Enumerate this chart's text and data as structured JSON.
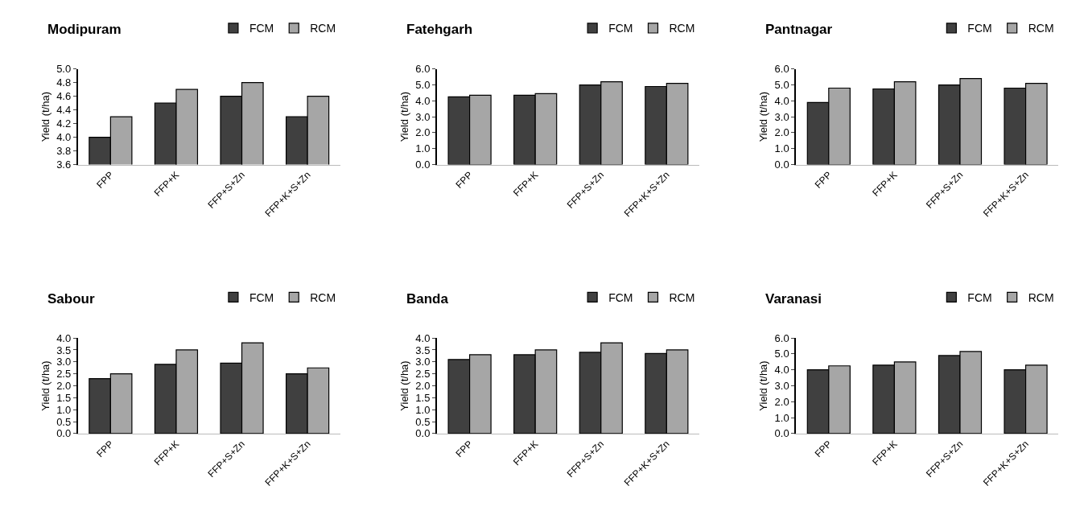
{
  "chart_data": [
    {
      "type": "bar",
      "title": "Modipuram",
      "ylabel": "Yield (t/ha)",
      "categories": [
        "FPP",
        "FFP+K",
        "FFP+S+Zn",
        "FFP+K+S+Zn"
      ],
      "legend": "top right",
      "series": [
        {
          "name": "FCM",
          "color": "#404040",
          "values": [
            4.0,
            4.5,
            4.6,
            4.3
          ]
        },
        {
          "name": "RCM",
          "color": "#a6a6a6",
          "values": [
            4.3,
            4.7,
            4.8,
            4.6
          ]
        }
      ],
      "ylim": [
        3.6,
        5.0
      ],
      "yticks": [
        {
          "value": 3.6,
          "label": "3.6"
        },
        {
          "value": 3.8,
          "label": "3.8"
        },
        {
          "value": 4.0,
          "label": "4.0"
        },
        {
          "value": 4.2,
          "label": "4.2"
        },
        {
          "value": 4.4,
          "label": "4.4"
        },
        {
          "value": 4.6,
          "label": "4.6"
        },
        {
          "value": 4.8,
          "label": "4.8"
        },
        {
          "value": 5.0,
          "label": "5.0"
        }
      ]
    },
    {
      "type": "bar",
      "title": "Fatehgarh",
      "ylabel": "Yield (t/ha)",
      "categories": [
        "FPP",
        "FFP+K",
        "FFP+S+Zn",
        "FFP+K+S+Zn"
      ],
      "legend": "top right",
      "series": [
        {
          "name": "FCM",
          "color": "#404040",
          "values": [
            4.25,
            4.35,
            5.0,
            4.9
          ]
        },
        {
          "name": "RCM",
          "color": "#a6a6a6",
          "values": [
            4.35,
            4.45,
            5.2,
            5.1
          ]
        }
      ],
      "ylim": [
        0,
        6
      ],
      "yticks": [
        {
          "value": 0,
          "label": "0.0"
        },
        {
          "value": 1,
          "label": "1.0"
        },
        {
          "value": 2,
          "label": "2.0"
        },
        {
          "value": 3,
          "label": "3.0"
        },
        {
          "value": 4,
          "label": "4.0"
        },
        {
          "value": 5,
          "label": "5.0"
        },
        {
          "value": 6,
          "label": "6.0"
        }
      ]
    },
    {
      "type": "bar",
      "title": "Pantnagar",
      "ylabel": "Yield (t/ha)",
      "categories": [
        "FPP",
        "FFP+K",
        "FFP+S+Zn",
        "FFP+K+S+Zn"
      ],
      "legend": "top right",
      "series": [
        {
          "name": "FCM",
          "color": "#404040",
          "values": [
            3.9,
            4.75,
            5.0,
            4.8
          ]
        },
        {
          "name": "RCM",
          "color": "#a6a6a6",
          "values": [
            4.8,
            5.2,
            5.4,
            5.1
          ]
        }
      ],
      "ylim": [
        0,
        6
      ],
      "yticks": [
        {
          "value": 0,
          "label": "0.0"
        },
        {
          "value": 1,
          "label": "1.0"
        },
        {
          "value": 2,
          "label": "2.0"
        },
        {
          "value": 3,
          "label": "3.0"
        },
        {
          "value": 4,
          "label": "4.0"
        },
        {
          "value": 5,
          "label": "5.0"
        },
        {
          "value": 6,
          "label": "6.0"
        }
      ]
    },
    {
      "type": "bar",
      "title": "Sabour",
      "ylabel": "Yield (t/ha)",
      "categories": [
        "FPP",
        "FFP+K",
        "FFP+S+Zn",
        "FFP+K+S+Zn"
      ],
      "legend": "top right",
      "series": [
        {
          "name": "FCM",
          "color": "#404040",
          "values": [
            2.3,
            2.9,
            2.95,
            2.5
          ]
        },
        {
          "name": "RCM",
          "color": "#a6a6a6",
          "values": [
            2.5,
            3.5,
            3.8,
            2.75
          ]
        }
      ],
      "ylim": [
        0,
        4
      ],
      "yticks": [
        {
          "value": 0,
          "label": "0.0"
        },
        {
          "value": 0.5,
          "label": "0.5"
        },
        {
          "value": 1,
          "label": "1.0"
        },
        {
          "value": 1.5,
          "label": "1.5"
        },
        {
          "value": 2,
          "label": "2.0"
        },
        {
          "value": 2.5,
          "label": "2.5"
        },
        {
          "value": 3,
          "label": "3.0"
        },
        {
          "value": 3.5,
          "label": "3.5"
        },
        {
          "value": 4,
          "label": "4.0"
        }
      ]
    },
    {
      "type": "bar",
      "title": "Banda",
      "ylabel": "Yield (t/ha)",
      "categories": [
        "FPP",
        "FFP+K",
        "FFP+S+Zn",
        "FFP+K+S+Zn"
      ],
      "legend": "top right",
      "series": [
        {
          "name": "FCM",
          "color": "#404040",
          "values": [
            3.1,
            3.3,
            3.4,
            3.35
          ]
        },
        {
          "name": "RCM",
          "color": "#a6a6a6",
          "values": [
            3.3,
            3.5,
            3.8,
            3.5
          ]
        }
      ],
      "ylim": [
        0,
        4
      ],
      "yticks": [
        {
          "value": 0,
          "label": "0.0"
        },
        {
          "value": 0.5,
          "label": "0.5"
        },
        {
          "value": 1,
          "label": "1.0"
        },
        {
          "value": 1.5,
          "label": "1.5"
        },
        {
          "value": 2,
          "label": "2.0"
        },
        {
          "value": 2.5,
          "label": "2.5"
        },
        {
          "value": 3,
          "label": "3.0"
        },
        {
          "value": 3.5,
          "label": "3.5"
        },
        {
          "value": 4,
          "label": "4.0"
        }
      ]
    },
    {
      "type": "bar",
      "title": "Varanasi",
      "ylabel": "Yield (t/ha)",
      "categories": [
        "FPP",
        "FFP+K",
        "FFP+S+Zn",
        "FFP+K+S+Zn"
      ],
      "legend": "top right",
      "series": [
        {
          "name": "FCM",
          "color": "#404040",
          "values": [
            4.0,
            4.3,
            4.9,
            4.0
          ]
        },
        {
          "name": "RCM",
          "color": "#a6a6a6",
          "values": [
            4.25,
            4.5,
            5.15,
            4.3
          ]
        }
      ],
      "ylim": [
        0,
        6
      ],
      "yticks": [
        {
          "value": 0,
          "label": "0.0"
        },
        {
          "value": 1,
          "label": "1.0"
        },
        {
          "value": 2,
          "label": "2.0"
        },
        {
          "value": 3,
          "label": "3.0"
        },
        {
          "value": 4,
          "label": "4.0"
        },
        {
          "value": 5,
          "label": "5.0"
        },
        {
          "value": 6,
          "label": "6.0"
        }
      ]
    }
  ]
}
